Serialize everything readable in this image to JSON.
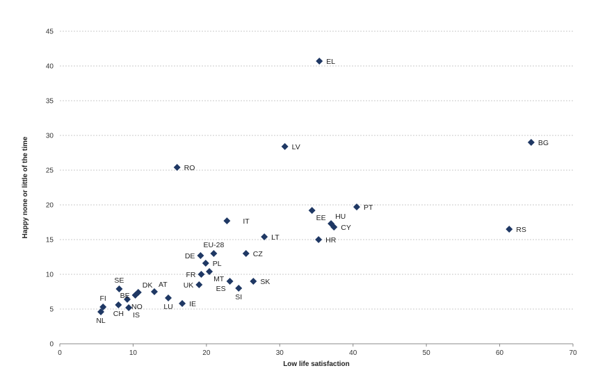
{
  "chart_data": {
    "type": "scatter",
    "title": "",
    "xlabel": "Low life satisfaction",
    "ylabel": "Happy none or little of the time",
    "xlim": [
      0,
      70
    ],
    "ylim": [
      0,
      45
    ],
    "xticks": [
      "0",
      "10",
      "20",
      "30",
      "40",
      "50",
      "60",
      "70"
    ],
    "yticks": [
      "0",
      "5",
      "10",
      "15",
      "20",
      "25",
      "30",
      "35",
      "40",
      "45"
    ],
    "grid": true,
    "marker_color": "#1f3864",
    "points": [
      {
        "label": "EL",
        "x": 35.4,
        "y": 40.7,
        "label_pos": "right"
      },
      {
        "label": "BG",
        "x": 64.3,
        "y": 29.0,
        "label_pos": "right"
      },
      {
        "label": "LV",
        "x": 30.7,
        "y": 28.4,
        "label_pos": "right"
      },
      {
        "label": "RO",
        "x": 16.0,
        "y": 25.4,
        "label_pos": "right"
      },
      {
        "label": "PT",
        "x": 40.5,
        "y": 19.7,
        "label_pos": "right"
      },
      {
        "label": "EE",
        "x": 34.4,
        "y": 19.2,
        "label_pos": "below-right"
      },
      {
        "label": "HU",
        "x": 37.0,
        "y": 17.3,
        "label_pos": "above-right"
      },
      {
        "label": "CY",
        "x": 37.4,
        "y": 16.8,
        "label_pos": "right"
      },
      {
        "label": "RS",
        "x": 61.3,
        "y": 16.5,
        "label_pos": "right"
      },
      {
        "label": "IT",
        "x": 22.8,
        "y": 17.7,
        "label_pos": "far-right"
      },
      {
        "label": "LT",
        "x": 27.9,
        "y": 15.4,
        "label_pos": "right"
      },
      {
        "label": "HR",
        "x": 35.3,
        "y": 15.0,
        "label_pos": "right"
      },
      {
        "label": "EU-28",
        "x": 21.0,
        "y": 13.0,
        "label_pos": "above"
      },
      {
        "label": "CZ",
        "x": 25.4,
        "y": 13.0,
        "label_pos": "right"
      },
      {
        "label": "DE",
        "x": 19.2,
        "y": 12.7,
        "label_pos": "left"
      },
      {
        "label": "PL",
        "x": 19.9,
        "y": 11.6,
        "label_pos": "right"
      },
      {
        "label": "MT",
        "x": 20.4,
        "y": 10.4,
        "label_pos": "below-right"
      },
      {
        "label": "FR",
        "x": 19.3,
        "y": 10.0,
        "label_pos": "left"
      },
      {
        "label": "SK",
        "x": 26.4,
        "y": 9.0,
        "label_pos": "right"
      },
      {
        "label": "ES",
        "x": 23.2,
        "y": 9.0,
        "label_pos": "below-left"
      },
      {
        "label": "UK",
        "x": 19.0,
        "y": 8.5,
        "label_pos": "left"
      },
      {
        "label": "SI",
        "x": 24.4,
        "y": 8.0,
        "label_pos": "below"
      },
      {
        "label": "SE",
        "x": 8.1,
        "y": 7.9,
        "label_pos": "above"
      },
      {
        "label": "DK",
        "x": 10.7,
        "y": 7.4,
        "label_pos": "above-right"
      },
      {
        "label": "AT",
        "x": 12.9,
        "y": 7.5,
        "label_pos": "above-right"
      },
      {
        "label": "BE",
        "x": 10.3,
        "y": 7.0,
        "label_pos": "left"
      },
      {
        "label": "NO",
        "x": 9.2,
        "y": 6.4,
        "label_pos": "below-right"
      },
      {
        "label": "LU",
        "x": 14.8,
        "y": 6.6,
        "label_pos": "below"
      },
      {
        "label": "IE",
        "x": 16.7,
        "y": 5.8,
        "label_pos": "right"
      },
      {
        "label": "FI",
        "x": 5.9,
        "y": 5.3,
        "label_pos": "above"
      },
      {
        "label": "CH",
        "x": 8.0,
        "y": 5.6,
        "label_pos": "below"
      },
      {
        "label": "IS",
        "x": 9.4,
        "y": 5.2,
        "label_pos": "below-right"
      },
      {
        "label": "NL",
        "x": 5.6,
        "y": 4.6,
        "label_pos": "below"
      }
    ]
  }
}
